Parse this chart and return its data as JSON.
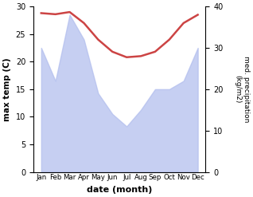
{
  "months": [
    "Jan",
    "Feb",
    "Mar",
    "Apr",
    "May",
    "Jun",
    "Jul",
    "Aug",
    "Sep",
    "Oct",
    "Nov",
    "Dec"
  ],
  "x": [
    0,
    1,
    2,
    3,
    4,
    5,
    6,
    7,
    8,
    9,
    10,
    11
  ],
  "temp_line": [
    28.8,
    28.6,
    29.0,
    27.0,
    24.0,
    21.8,
    20.8,
    21.0,
    21.8,
    24.0,
    27.0,
    28.5
  ],
  "precipitation": [
    30,
    22,
    38,
    32,
    19,
    14,
    11,
    15,
    20,
    20,
    22,
    30
  ],
  "temp_color": "#cc4444",
  "precip_color": "#b3bfee",
  "precip_alpha": 0.75,
  "ylabel_left": "max temp (C)",
  "ylabel_right": "med. precipitation\n(kg/m2)",
  "xlabel": "date (month)",
  "ylim_left": [
    0,
    30
  ],
  "ylim_right": [
    0,
    40
  ],
  "yticks_left": [
    0,
    5,
    10,
    15,
    20,
    25,
    30
  ],
  "yticks_right": [
    0,
    10,
    20,
    30,
    40
  ],
  "background_color": "#ffffff"
}
